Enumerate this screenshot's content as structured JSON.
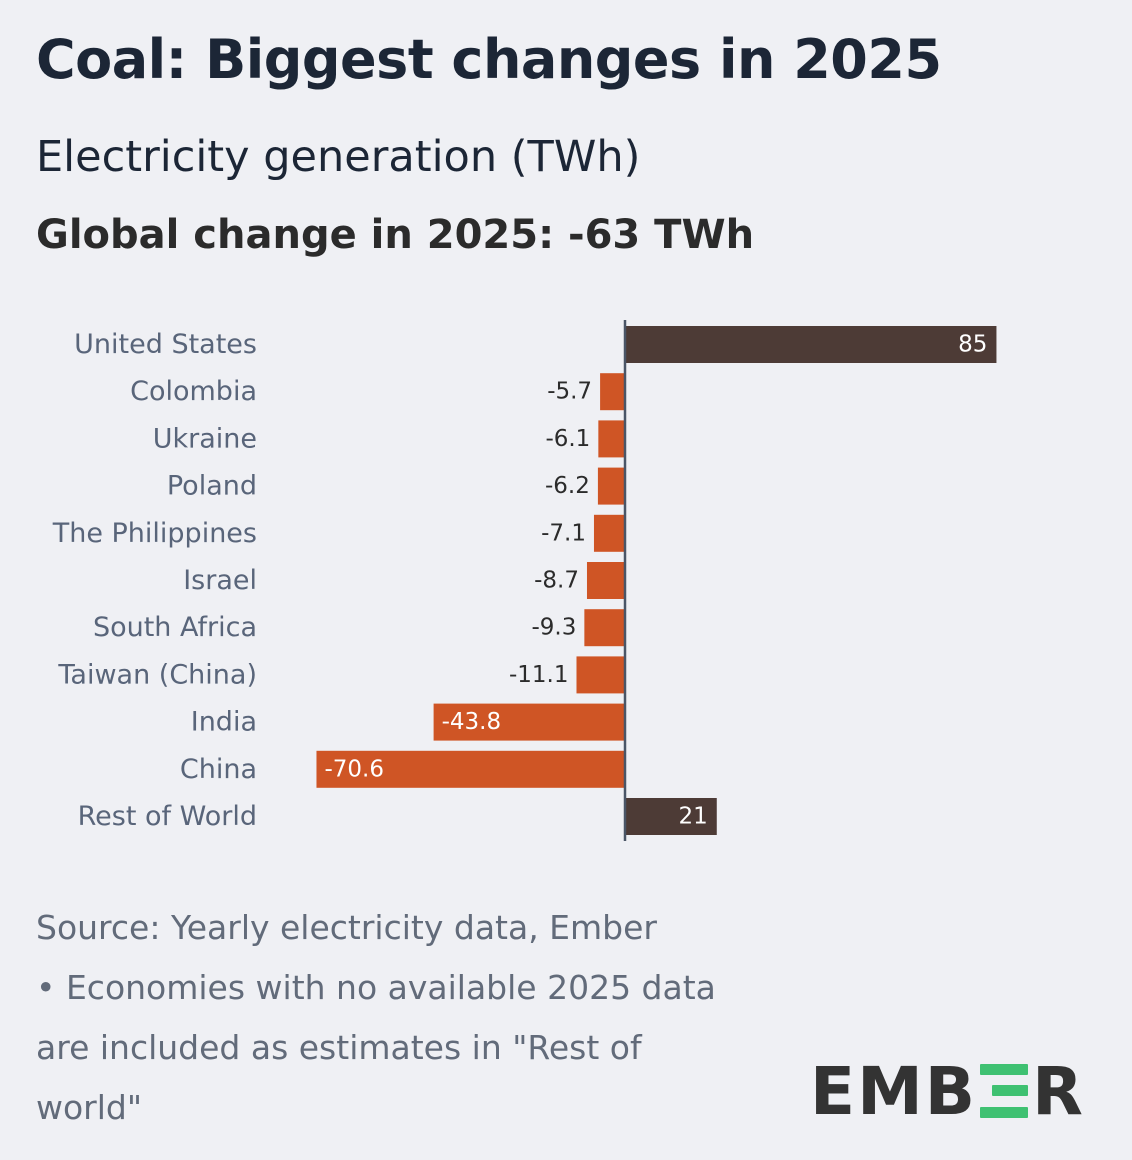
{
  "header": {
    "title": "Coal: Biggest changes in 2025",
    "subtitle": "Electricity generation (TWh)",
    "global_change": "Global change in 2025: -63 TWh"
  },
  "footnote": {
    "source": "Source: Yearly electricity data, Ember",
    "note": "• Economies with no available 2025 data are included as estimates in \"Rest of world\""
  },
  "logo": {
    "prefix": "EMB",
    "suffix": "R",
    "accent_color": "#3fc172"
  },
  "colors": {
    "positive": "#4d3b36",
    "negative": "#cf5525",
    "axis": "#4a5566",
    "category_label": "#59657a",
    "value_label_outside": "#2b2b2b",
    "value_label_inside": "#ffffff"
  },
  "chart_data": {
    "type": "bar",
    "orientation": "horizontal",
    "title": "Coal: Biggest changes in 2025",
    "subtitle": "Electricity generation (TWh)",
    "unit": "TWh",
    "xlim": [
      -70.6,
      85
    ],
    "grid": false,
    "categories": [
      "United States",
      "Colombia",
      "Ukraine",
      "Poland",
      "The Philippines",
      "Israel",
      "South Africa",
      "Taiwan (China)",
      "India",
      "China",
      "Rest of World"
    ],
    "values": [
      85,
      -5.7,
      -6.1,
      -6.2,
      -7.1,
      -8.7,
      -9.3,
      -11.1,
      -43.8,
      -70.6,
      21
    ],
    "value_labels": [
      "85",
      "-5.7",
      "-6.1",
      "-6.2",
      "-7.1",
      "-8.7",
      "-9.3",
      "-11.1",
      "-43.8",
      "-70.6",
      "21"
    ]
  }
}
